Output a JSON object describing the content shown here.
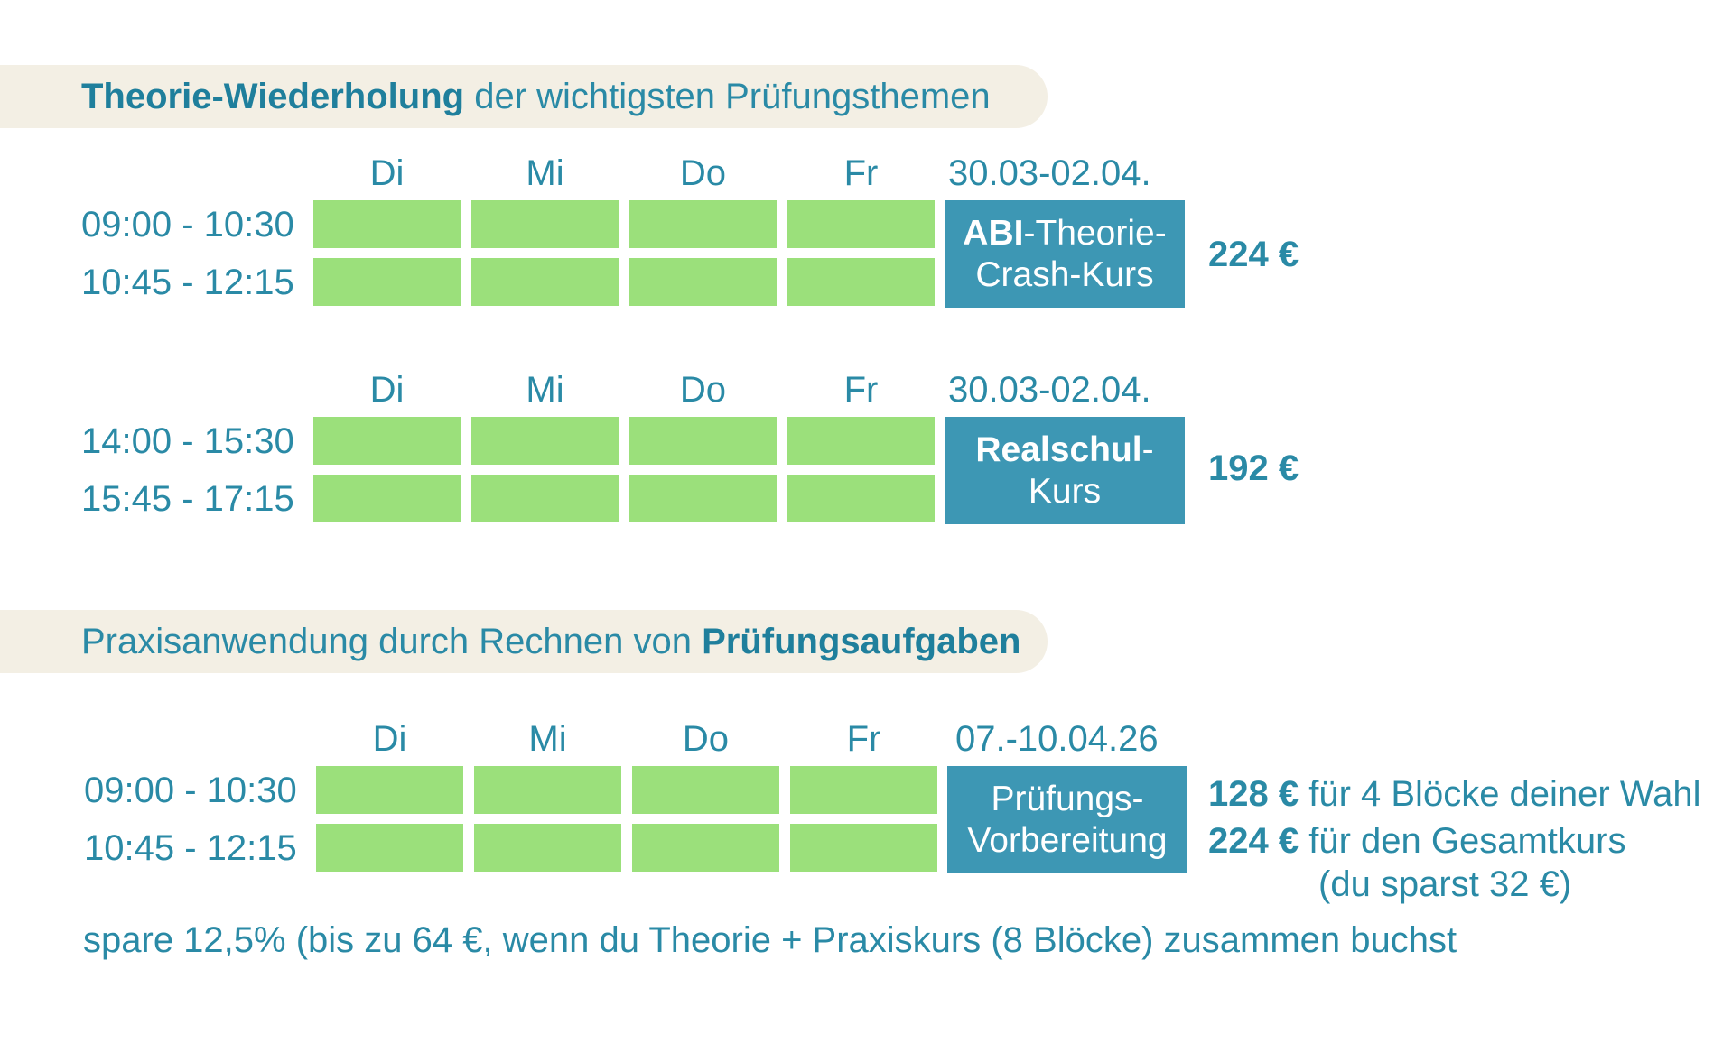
{
  "section1": {
    "banner_bold": "Theorie-Wiederholung",
    "banner_rest": " der wichtigsten Prüfungsthemen"
  },
  "section2": {
    "banner_rest": "Praxisanwendung durch Rechnen von ",
    "banner_bold": "Prüfungsaufgaben"
  },
  "block1": {
    "days": [
      "Di",
      "Mi",
      "Do",
      "Fr"
    ],
    "date": "30.03-02.04.",
    "times": [
      "09:00 - 10:30",
      "10:45 - 12:15"
    ],
    "course_bold": "ABI",
    "course_line1_rest": "-Theorie-",
    "course_line2": "Crash-Kurs",
    "price": "224 €"
  },
  "block2": {
    "days": [
      "Di",
      "Mi",
      "Do",
      "Fr"
    ],
    "date": "30.03-02.04.",
    "times": [
      "14:00 - 15:30",
      "15:45 - 17:15"
    ],
    "course_bold": "Realschul",
    "course_line1_rest": "-",
    "course_line2": "Kurs",
    "price": "192 €"
  },
  "block3": {
    "days": [
      "Di",
      "Mi",
      "Do",
      "Fr"
    ],
    "date": "07.-10.04.26",
    "times": [
      "09:00 - 10:30",
      "10:45 - 12:15"
    ],
    "course_line1": "Prüfungs-",
    "course_line2": "Vorbereitung",
    "price1_bold": "128 €",
    "price1_rest": " für 4 Blöcke deiner Wahl",
    "price2_bold": "224 €",
    "price2_rest": " für den Gesamtkurs",
    "price2_note": "(du sparst 32 €)"
  },
  "footer": "spare 12,5% (bis zu 64 €, wenn du Theorie + Praxiskurs (8 Blöcke) zusammen buchst",
  "colors": {
    "slot_green": "#9be07b",
    "course_blue": "#3d97b4",
    "text_teal": "#2a8aa6",
    "banner_beige": "#f3efe4"
  }
}
